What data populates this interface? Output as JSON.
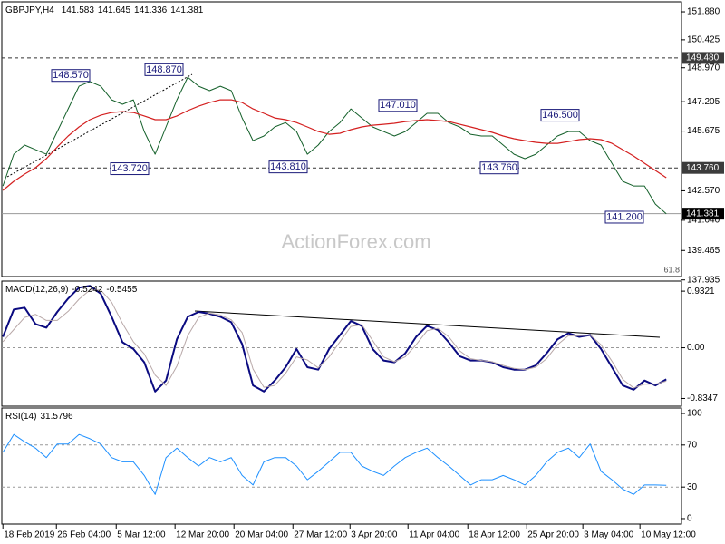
{
  "chart_data": [
    {
      "type": "line",
      "title": "GBPJPY,H4",
      "readings": [
        141.583,
        141.645,
        141.336,
        141.381
      ],
      "xlim": [
        -0.1,
        62.4
      ],
      "ylim": [
        138.11,
        152.4
      ],
      "yticks": [
        {
          "value": 151.88,
          "label": "151.880"
        },
        150.425,
        {
          "value": 148.97,
          "label": "148.970"
        },
        147.205,
        145.675,
        {
          "value": 142.57,
          "label": "142.570"
        },
        {
          "value": 141.04,
          "label": "141.040"
        },
        139.465,
        137.935
      ],
      "series": [
        {
          "color": "#14602a",
          "width": 1,
          "values": [
            142.82,
            144.47,
            144.95,
            144.71,
            144.47,
            145.65,
            146.83,
            148.01,
            148.25,
            148.01,
            147.3,
            147.07,
            147.3,
            145.65,
            144.47,
            145.89,
            147.3,
            148.48,
            148.01,
            147.78,
            148.01,
            147.78,
            146.36,
            145.18,
            145.42,
            145.89,
            146.12,
            145.65,
            144.47,
            144.95,
            145.65,
            146.12,
            146.83,
            146.36,
            145.89,
            145.65,
            145.42,
            145.65,
            146.12,
            146.6,
            146.6,
            146.12,
            145.89,
            145.51,
            145.42,
            145.42,
            144.95,
            144.47,
            144.24,
            144.47,
            144.95,
            145.42,
            145.65,
            145.65,
            145.18,
            144.95,
            144.0,
            143.06,
            142.82,
            142.82,
            141.88,
            141.38
          ]
        },
        {
          "color": "#d42020",
          "width": 1.2,
          "values": [
            142.59,
            143.06,
            143.44,
            143.77,
            144.24,
            144.85,
            145.42,
            145.89,
            146.27,
            146.5,
            146.64,
            146.69,
            146.64,
            146.46,
            146.27,
            146.27,
            146.46,
            146.74,
            146.97,
            147.16,
            147.3,
            147.3,
            147.16,
            146.83,
            146.6,
            146.36,
            146.27,
            146.12,
            145.89,
            145.65,
            145.51,
            145.56,
            145.75,
            145.89,
            145.98,
            146.03,
            146.08,
            146.17,
            146.22,
            146.27,
            146.22,
            146.17,
            146.03,
            145.89,
            145.75,
            145.61,
            145.42,
            145.28,
            145.18,
            145.09,
            145.04,
            145.04,
            145.13,
            145.23,
            145.28,
            145.23,
            145.04,
            144.71,
            144.38,
            144.0,
            143.63,
            143.25
          ]
        }
      ],
      "levels": [
        {
          "value": 149.48,
          "label": "149.480",
          "dashed": true,
          "color": "#3c3c3c"
        },
        {
          "value": 143.76,
          "label": "143.760",
          "dashed": true,
          "color": "#3c3c3c"
        },
        {
          "value": 141.381,
          "label": "141.381",
          "dashed": false,
          "color": "#000000"
        }
      ],
      "annotations": [
        {
          "value": 148.57,
          "label": "148.570"
        },
        {
          "value": 148.87,
          "label": "148.870"
        },
        {
          "value": 143.72,
          "label": "143.720"
        },
        {
          "value": 143.81,
          "label": "143.810"
        },
        {
          "value": 147.01,
          "label": "147.010"
        },
        {
          "value": 146.5,
          "label": "146.500"
        },
        {
          "value": 143.76,
          "label": "143.760"
        },
        {
          "value": 141.2,
          "label": "141.200"
        }
      ],
      "fib_label": "61.8",
      "watermark": "ActionForex.com"
    },
    {
      "type": "line",
      "title": "MACD(12,26,9)",
      "readings": [
        -0.5242,
        -0.5455
      ],
      "xlim": [
        -0.1,
        62.4
      ],
      "ylim": [
        -0.962,
        1.098
      ],
      "yticks": [
        0.9321,
        {
          "value": 0,
          "label": "0.00"
        },
        -0.8347
      ],
      "levels": [
        0
      ],
      "series": [
        {
          "color": "#0a0a80",
          "width": 2,
          "values": [
            0.18,
            0.63,
            0.66,
            0.39,
            0.33,
            0.59,
            0.81,
            0.99,
            1.02,
            0.89,
            0.51,
            0.09,
            -0.02,
            -0.24,
            -0.72,
            -0.54,
            0.14,
            0.51,
            0.59,
            0.56,
            0.51,
            0.42,
            0.06,
            -0.62,
            -0.72,
            -0.54,
            -0.32,
            -0.02,
            -0.32,
            -0.36,
            -0.02,
            0.21,
            0.44,
            0.36,
            -0.02,
            -0.21,
            -0.24,
            -0.09,
            0.18,
            0.36,
            0.29,
            0.09,
            -0.14,
            -0.21,
            -0.21,
            -0.24,
            -0.32,
            -0.36,
            -0.36,
            -0.29,
            -0.09,
            0.14,
            0.24,
            0.18,
            0.21,
            -0.02,
            -0.32,
            -0.62,
            -0.69,
            -0.54,
            -0.62,
            -0.52
          ]
        },
        {
          "color": "#b8a8a8",
          "width": 1,
          "values": [
            0.1,
            0.3,
            0.5,
            0.55,
            0.45,
            0.45,
            0.6,
            0.8,
            0.95,
            0.95,
            0.75,
            0.4,
            0.1,
            -0.1,
            -0.45,
            -0.62,
            -0.3,
            0.2,
            0.5,
            0.57,
            0.54,
            0.46,
            0.25,
            -0.35,
            -0.65,
            -0.62,
            -0.42,
            -0.15,
            -0.2,
            -0.33,
            -0.15,
            0.1,
            0.35,
            0.38,
            0.12,
            -0.15,
            -0.23,
            -0.15,
            0.05,
            0.28,
            0.32,
            0.18,
            -0.05,
            -0.18,
            -0.21,
            -0.23,
            -0.29,
            -0.34,
            -0.36,
            -0.32,
            -0.18,
            0.05,
            0.2,
            0.2,
            0.21,
            0.05,
            -0.22,
            -0.52,
            -0.66,
            -0.6,
            -0.6,
            -0.55
          ]
        }
      ]
    },
    {
      "type": "line",
      "title": "RSI(14)",
      "readings": [
        31.5796
      ],
      "xlim": [
        -0.1,
        62.4
      ],
      "ylim": [
        -5.2,
        105.2
      ],
      "yticks": [
        100,
        70,
        30,
        0
      ],
      "levels": [
        70,
        30
      ],
      "series": [
        {
          "color": "#1e90ff",
          "width": 1,
          "values": [
            63,
            80,
            73,
            67,
            58,
            71,
            71,
            80,
            76,
            71,
            58,
            54,
            54,
            41,
            23,
            58,
            67,
            58,
            50,
            58,
            54,
            58,
            41,
            32,
            54,
            58,
            58,
            50,
            37,
            45,
            54,
            63,
            63,
            50,
            45,
            41,
            50,
            58,
            63,
            67,
            58,
            50,
            41,
            32,
            37,
            37,
            41,
            37,
            32,
            41,
            54,
            63,
            67,
            58,
            71,
            45,
            37,
            28,
            23,
            32,
            32,
            31.6
          ]
        }
      ],
      "xticks": [
        {
          "value": 0,
          "label": "18 Feb 2019"
        },
        {
          "value": 4.92,
          "label": "26 Feb 04:00"
        },
        {
          "value": 10.42,
          "label": "5 Mar 12:00"
        },
        {
          "value": 15.83,
          "label": "12 Mar 20:00"
        },
        {
          "value": 21.25,
          "label": "20 Mar 04:00"
        },
        {
          "value": 26.67,
          "label": "27 Mar 12:00"
        },
        {
          "value": 31.92,
          "label": "3 Apr 20:00"
        },
        {
          "value": 37.25,
          "label": "11 Apr 04:00"
        },
        {
          "value": 42.75,
          "label": "18 Apr 12:00"
        },
        {
          "value": 48.17,
          "label": "25 Apr 20:00"
        },
        {
          "value": 53.33,
          "label": "3 May 04:00"
        },
        {
          "value": 58.58,
          "label": "10 May 12:00"
        }
      ]
    }
  ]
}
